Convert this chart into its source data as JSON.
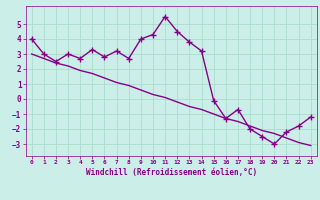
{
  "x": [
    0,
    1,
    2,
    3,
    4,
    5,
    6,
    7,
    8,
    9,
    10,
    11,
    12,
    13,
    14,
    15,
    16,
    17,
    18,
    19,
    20,
    21,
    22,
    23
  ],
  "y_data": [
    4.0,
    3.0,
    2.5,
    3.0,
    2.7,
    3.3,
    2.8,
    3.2,
    2.7,
    4.0,
    4.3,
    5.5,
    4.5,
    3.8,
    3.2,
    -0.1,
    -1.3,
    -0.7,
    -2.0,
    -2.5,
    -3.0,
    -2.2,
    -1.8,
    -1.2
  ],
  "y_trend": [
    3.0,
    2.7,
    2.4,
    2.2,
    1.9,
    1.7,
    1.4,
    1.1,
    0.9,
    0.6,
    0.3,
    0.1,
    -0.2,
    -0.5,
    -0.7,
    -1.0,
    -1.3,
    -1.5,
    -1.8,
    -2.1,
    -2.3,
    -2.6,
    -2.9,
    -3.1
  ],
  "line_color": "#880088",
  "bg_color": "#cceee8",
  "grid_color": "#aaddcc",
  "xlabel": "Windchill (Refroidissement éolien,°C)",
  "xlim": [
    -0.5,
    23.5
  ],
  "ylim": [
    -3.8,
    6.2
  ],
  "yticks": [
    -3,
    -2,
    -1,
    0,
    1,
    2,
    3,
    4,
    5
  ],
  "xticks": [
    0,
    1,
    2,
    3,
    4,
    5,
    6,
    7,
    8,
    9,
    10,
    11,
    12,
    13,
    14,
    15,
    16,
    17,
    18,
    19,
    20,
    21,
    22,
    23
  ],
  "marker": "+",
  "markersize": 4,
  "linewidth": 1.0
}
